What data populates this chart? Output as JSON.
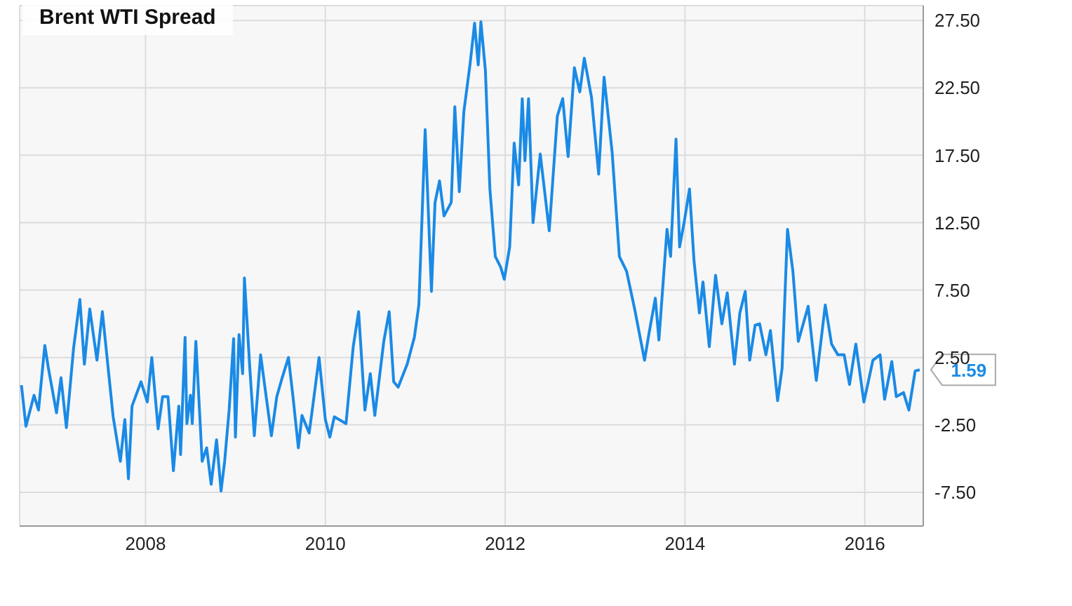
{
  "chart_data": {
    "type": "line",
    "title": "Brent WTI Spread",
    "x": [
      2006.62,
      2006.67,
      2006.76,
      2006.81,
      2006.88,
      2006.92,
      2007.01,
      2007.06,
      2007.12,
      2007.2,
      2007.27,
      2007.32,
      2007.38,
      2007.46,
      2007.52,
      2007.64,
      2007.72,
      2007.77,
      2007.81,
      2007.85,
      2007.95,
      2008.02,
      2008.07,
      2008.14,
      2008.19,
      2008.25,
      2008.31,
      2008.37,
      2008.39,
      2008.44,
      2008.46,
      2008.5,
      2008.52,
      2008.56,
      2008.63,
      2008.68,
      2008.73,
      2008.79,
      2008.84,
      2008.88,
      2008.93,
      2008.98,
      2009.0,
      2009.04,
      2009.08,
      2009.1,
      2009.16,
      2009.21,
      2009.28,
      2009.35,
      2009.4,
      2009.46,
      2009.52,
      2009.59,
      2009.64,
      2009.7,
      2009.74,
      2009.82,
      2009.86,
      2009.93,
      2010.0,
      2010.05,
      2010.1,
      2010.23,
      2010.31,
      2010.37,
      2010.44,
      2010.5,
      2010.55,
      2010.65,
      2010.71,
      2010.76,
      2010.81,
      2010.91,
      2010.99,
      2011.04,
      2011.07,
      2011.11,
      2011.18,
      2011.22,
      2011.27,
      2011.32,
      2011.4,
      2011.44,
      2011.49,
      2011.54,
      2011.61,
      2011.66,
      2011.7,
      2011.73,
      2011.78,
      2011.83,
      2011.89,
      2011.95,
      2011.99,
      2012.05,
      2012.1,
      2012.15,
      2012.19,
      2012.22,
      2012.26,
      2012.31,
      2012.39,
      2012.49,
      2012.58,
      2012.64,
      2012.7,
      2012.77,
      2012.83,
      2012.88,
      2012.96,
      2013.04,
      2013.1,
      2013.19,
      2013.27,
      2013.35,
      2013.44,
      2013.55,
      2013.6,
      2013.67,
      2013.71,
      2013.8,
      2013.84,
      2013.9,
      2013.94,
      2013.99,
      2014.05,
      2014.1,
      2014.16,
      2014.2,
      2014.27,
      2014.34,
      2014.41,
      2014.47,
      2014.55,
      2014.61,
      2014.67,
      2014.72,
      2014.78,
      2014.83,
      2014.9,
      2014.95,
      2015.03,
      2015.08,
      2015.14,
      2015.2,
      2015.26,
      2015.37,
      2015.46,
      2015.56,
      2015.63,
      2015.7,
      2015.77,
      2015.83,
      2015.9,
      2015.99,
      2016.09,
      2016.17,
      2016.22,
      2016.3,
      2016.35,
      2016.43,
      2016.49,
      2016.56,
      2016.61
    ],
    "series": [
      {
        "color": "#1a8ae6",
        "values": [
          0.45,
          -2.6,
          -0.3,
          -1.4,
          3.4,
          1.7,
          -1.6,
          1.0,
          -2.7,
          3.2,
          6.8,
          2.0,
          6.1,
          2.3,
          5.9,
          -1.9,
          -5.2,
          -2.1,
          -6.5,
          -1.1,
          0.7,
          -0.8,
          2.5,
          -2.8,
          -0.4,
          -0.4,
          -5.9,
          -1.1,
          -4.7,
          4.0,
          -2.4,
          -0.3,
          -2.4,
          3.7,
          -5.2,
          -4.2,
          -6.9,
          -3.6,
          -7.4,
          -5.2,
          -1.4,
          3.9,
          -3.4,
          4.2,
          1.3,
          8.4,
          1.7,
          -3.3,
          2.7,
          -0.8,
          -3.3,
          -0.4,
          1.0,
          2.5,
          -0.4,
          -4.2,
          -1.8,
          -3.1,
          -1.1,
          2.5,
          -2.1,
          -3.4,
          -1.9,
          -2.4,
          3.3,
          5.9,
          -1.4,
          1.3,
          -1.8,
          3.7,
          5.9,
          0.7,
          0.3,
          2.0,
          4.0,
          6.4,
          11.9,
          19.4,
          7.4,
          14.0,
          15.6,
          13.0,
          14.0,
          21.1,
          14.8,
          20.7,
          24.3,
          27.3,
          24.2,
          27.4,
          23.8,
          15.0,
          10.0,
          9.2,
          8.3,
          10.7,
          18.4,
          15.3,
          21.7,
          17.1,
          21.7,
          12.5,
          17.6,
          11.9,
          20.4,
          21.7,
          17.4,
          24.0,
          22.2,
          24.7,
          21.8,
          16.1,
          23.3,
          17.7,
          10.0,
          8.9,
          6.1,
          2.3,
          4.3,
          6.9,
          3.8,
          12.0,
          10.0,
          18.7,
          10.7,
          12.5,
          15.0,
          9.7,
          5.8,
          8.1,
          3.3,
          8.6,
          5.0,
          7.3,
          2.0,
          5.8,
          7.4,
          2.3,
          4.9,
          5.0,
          2.7,
          4.5,
          -0.7,
          1.7,
          12.0,
          8.9,
          3.7,
          6.3,
          0.8,
          6.4,
          3.5,
          2.7,
          2.7,
          0.5,
          3.5,
          -0.8,
          2.3,
          2.7,
          -0.6,
          2.2,
          -0.4,
          -0.1,
          -1.4,
          1.5,
          1.59
        ]
      }
    ],
    "xlim": [
      2006.6,
      2016.65
    ],
    "xticks": [
      2008,
      2010,
      2012,
      2014,
      2016
    ],
    "ylim": [
      -10,
      28.6
    ],
    "yticks": [
      {
        "value": -7.5,
        "label": "-7.50"
      },
      {
        "value": -2.5,
        "label": "-2.50"
      },
      {
        "value": 2.5,
        "label": "2.50"
      },
      {
        "value": 7.5,
        "label": "7.50"
      },
      {
        "value": 12.5,
        "label": "12.50"
      },
      {
        "value": 17.5,
        "label": "17.50"
      },
      {
        "value": 22.5,
        "label": "22.50"
      },
      {
        "value": 27.5,
        "label": "27.50"
      }
    ],
    "grid": true,
    "marker": "none",
    "line_style": "solid",
    "annotations": [
      {
        "text": "1.59",
        "x": 2016.61,
        "y": 1.59
      }
    ]
  }
}
